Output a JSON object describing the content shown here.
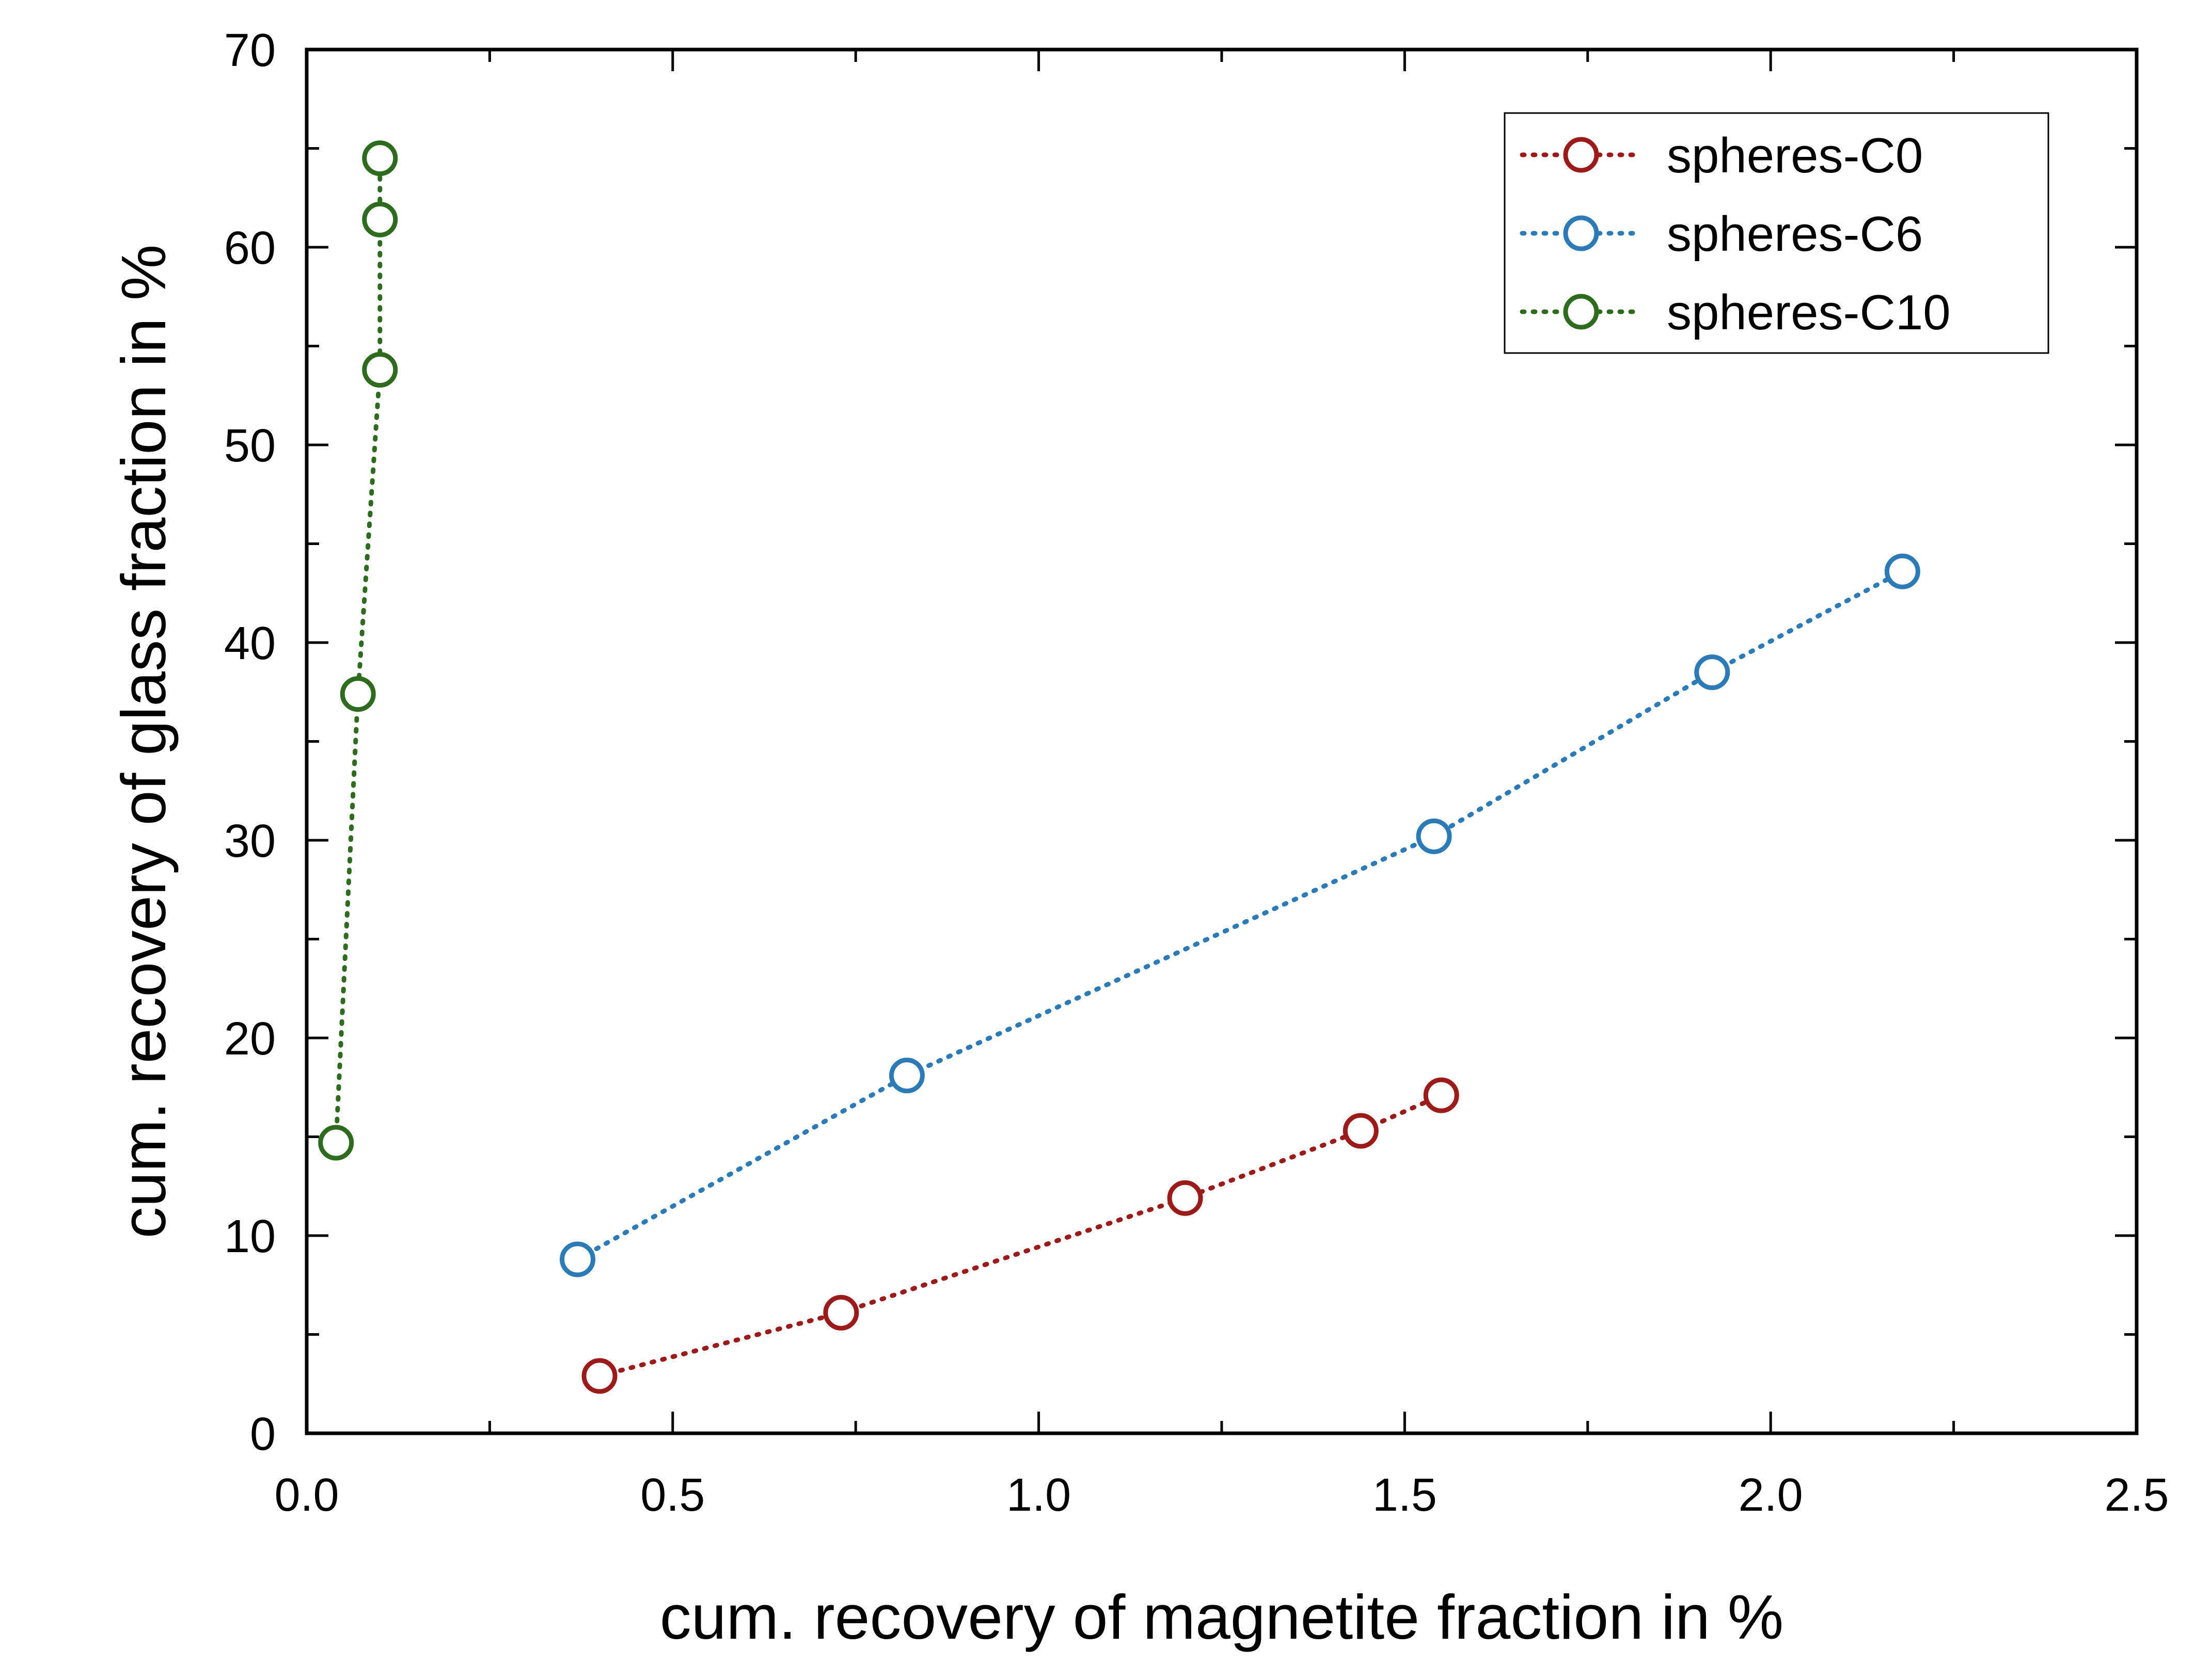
{
  "chart_data": {
    "type": "scatter",
    "title": "",
    "xlabel": "cum. recovery of magnetite fraction in %",
    "ylabel": "cum. recovery of glass fraction in %",
    "xlim": [
      0.0,
      2.5
    ],
    "ylim": [
      0,
      70
    ],
    "xticks": [
      0.0,
      0.5,
      1.0,
      1.5,
      2.0,
      2.5
    ],
    "xtick_labels": [
      "0.0",
      "0.5",
      "1.0",
      "1.5",
      "2.0",
      "2.5"
    ],
    "yticks": [
      0,
      10,
      20,
      30,
      40,
      50,
      60,
      70
    ],
    "ytick_labels": [
      "0",
      "10",
      "20",
      "30",
      "40",
      "50",
      "60",
      "70"
    ],
    "grid": false,
    "legend_position": "top-right",
    "line_style": "dotted",
    "marker": "open-circle",
    "series": [
      {
        "name": "spheres-C0",
        "color": "#9B1B1B",
        "x": [
          0.4,
          0.73,
          1.2,
          1.44,
          1.55
        ],
        "y": [
          2.9,
          6.1,
          11.9,
          15.3,
          17.1
        ]
      },
      {
        "name": "spheres-C6",
        "color": "#2C7BB6",
        "x": [
          0.37,
          0.82,
          1.54,
          1.92,
          2.18
        ],
        "y": [
          8.8,
          18.1,
          30.2,
          38.5,
          43.6
        ]
      },
      {
        "name": "spheres-C10",
        "color": "#2E6B1F",
        "x": [
          0.04,
          0.07,
          0.1,
          0.1,
          0.1
        ],
        "y": [
          14.7,
          37.4,
          53.8,
          61.4,
          64.5
        ]
      }
    ]
  }
}
